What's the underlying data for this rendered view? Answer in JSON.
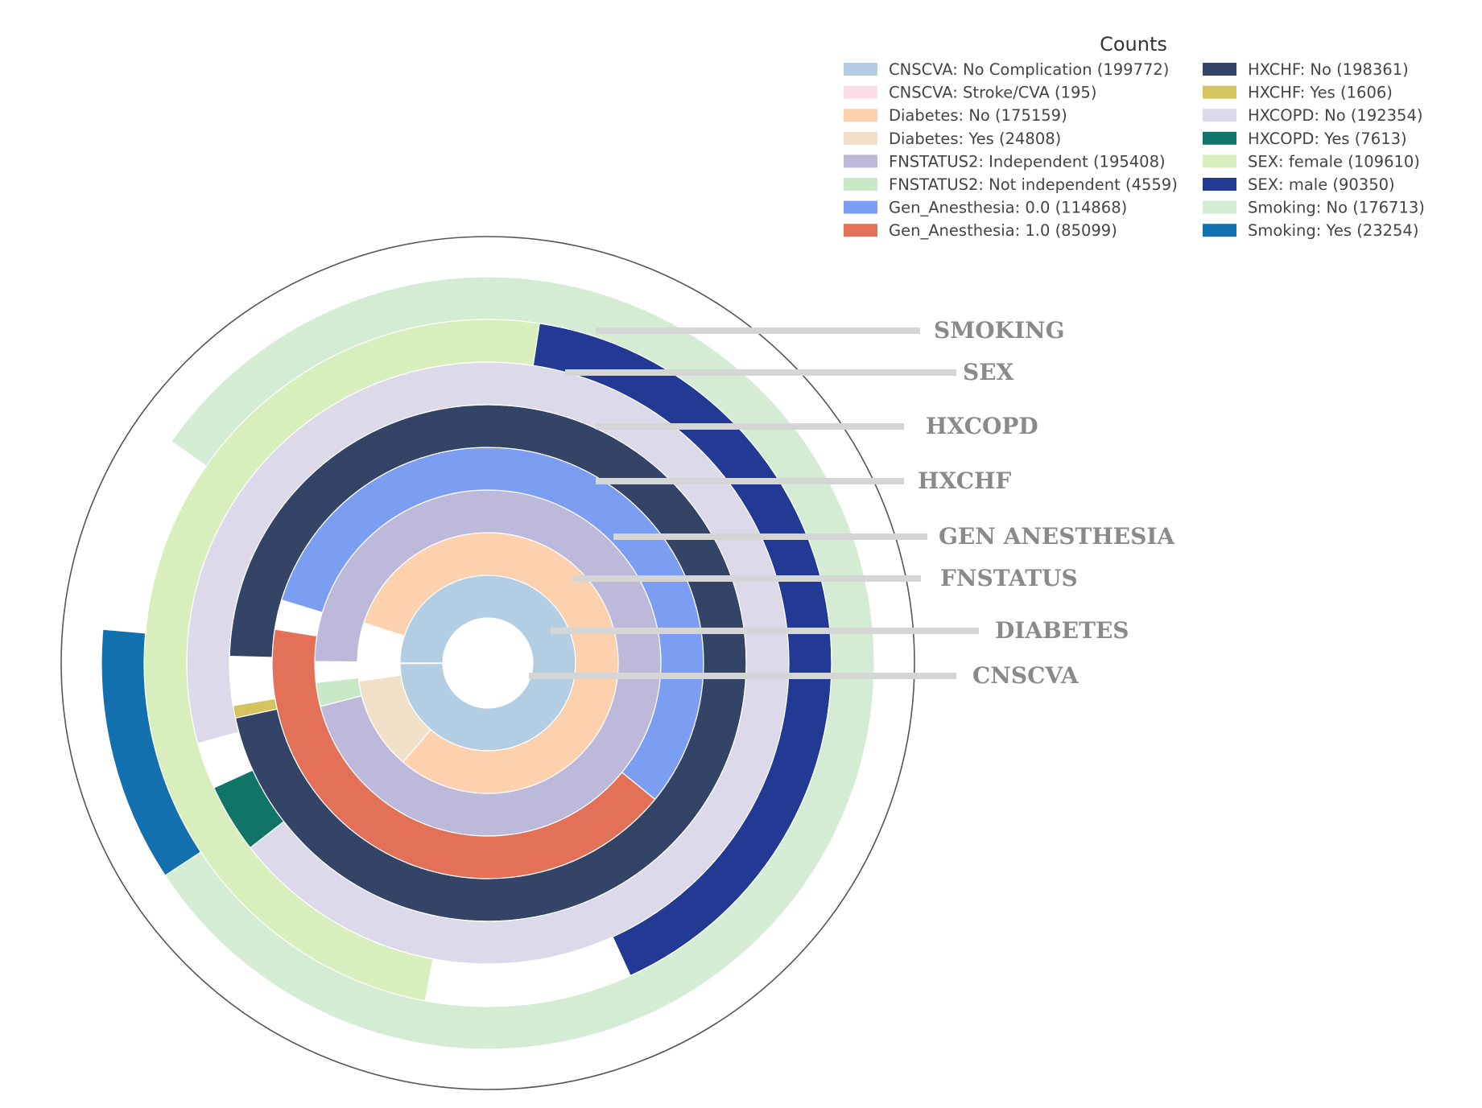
{
  "chart_data": {
    "type": "sunburst-rings",
    "legend": {
      "title": "Counts",
      "entries": [
        {
          "label": "CNSCVA: No Complication (199772)",
          "color": "#b3cde3"
        },
        {
          "label": "CNSCVA: Stroke/CVA (195)",
          "color": "#fbdde9"
        },
        {
          "label": "Diabetes: No (175159)",
          "color": "#fdd0ae"
        },
        {
          "label": "Diabetes: Yes (24808)",
          "color": "#f1e0c8"
        },
        {
          "label": "FNSTATUS2: Independent (195408)",
          "color": "#bdb9da"
        },
        {
          "label": "FNSTATUS2: Not independent (4559)",
          "color": "#c9e8c6"
        },
        {
          "label": "Gen_Anesthesia: 0.0 (114868)",
          "color": "#7b9ef2"
        },
        {
          "label": "Gen_Anesthesia: 1.0 (85099)",
          "color": "#e37157"
        },
        {
          "label": "HXCHF: No (198361)",
          "color": "#344467"
        },
        {
          "label": "HXCHF: Yes (1606)",
          "color": "#d4c35e"
        },
        {
          "label": "HXCOPD: No (192354)",
          "color": "#dcd9ea"
        },
        {
          "label": "HXCOPD: Yes (7613)",
          "color": "#107566"
        },
        {
          "label": "SEX: female (109610)",
          "color": "#d8eebc"
        },
        {
          "label": "SEX: male (90350)",
          "color": "#223a94"
        },
        {
          "label": "Smoking: No (176713)",
          "color": "#d4ecd3"
        },
        {
          "label": "Smoking: Yes (23254)",
          "color": "#1170ad"
        }
      ]
    },
    "rings": [
      {
        "label": "CNSCVA",
        "segments": [
          {
            "category": "No Complication",
            "value": 199772,
            "color": "#b3cde3"
          },
          {
            "category": "Stroke/CVA",
            "value": 195,
            "color": "#fbdde9"
          }
        ]
      },
      {
        "label": "DIABETES",
        "segments": [
          {
            "category": "No",
            "value": 175159,
            "color": "#fdd0ae"
          },
          {
            "category": "Yes",
            "value": 24808,
            "color": "#f1e0c8"
          }
        ]
      },
      {
        "label": "FNSTATUS",
        "segments": [
          {
            "category": "Independent",
            "value": 195408,
            "color": "#bdb9da"
          },
          {
            "category": "Not independent",
            "value": 4559,
            "color": "#c9e8c6"
          }
        ]
      },
      {
        "label": "GEN ANESTHESIA",
        "segments": [
          {
            "category": "0.0",
            "value": 114868,
            "color": "#7b9ef2"
          },
          {
            "category": "1.0",
            "value": 85099,
            "color": "#e37157"
          }
        ]
      },
      {
        "label": "HXCHF",
        "segments": [
          {
            "category": "No",
            "value": 198361,
            "color": "#344467"
          },
          {
            "category": "Yes",
            "value": 1606,
            "color": "#d4c35e"
          }
        ]
      },
      {
        "label": "HXCOPD",
        "segments": [
          {
            "category": "No",
            "value": 192354,
            "color": "#dcd9ea"
          },
          {
            "category": "Yes",
            "value": 7613,
            "color": "#107566"
          }
        ]
      },
      {
        "label": "SEX",
        "segments": [
          {
            "category": "female",
            "value": 109610,
            "color": "#d8eebc"
          },
          {
            "category": "male",
            "value": 90350,
            "color": "#223a94"
          }
        ]
      },
      {
        "label": "SMOKING",
        "segments": [
          {
            "category": "No",
            "value": 176713,
            "color": "#d4ecd3"
          },
          {
            "category": "Yes",
            "value": 23254,
            "color": "#1170ad"
          }
        ]
      }
    ]
  }
}
